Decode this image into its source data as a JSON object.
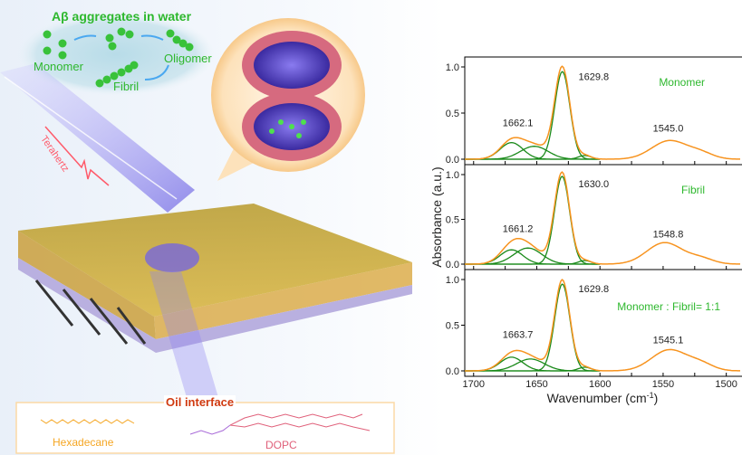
{
  "illustration": {
    "water_title": "Aβ aggregates in water",
    "stages": [
      "Monomer",
      "Oligomer",
      "Fibril"
    ],
    "beam_label": "Terahertz",
    "oil_title": "Oil interface",
    "molecules": [
      "Hexadecane",
      "DOPC"
    ],
    "colors": {
      "green": "#2eb82e",
      "oil_title": "#d03a10",
      "hexadecane": "#f5a623",
      "dopc": "#e0607a",
      "beam": "#7a5cf0"
    }
  },
  "chart_data": {
    "type": "line",
    "xlabel": "Wavenumber (cm-1)",
    "ylabel": "Absorbance (a.u.)",
    "xlim": [
      1707,
      1489
    ],
    "x_reversed": true,
    "ylim": [
      0,
      1.05
    ],
    "xticks": [
      1700,
      1650,
      1600,
      1550,
      1500
    ],
    "yticks": [
      "0.0",
      "0.5",
      "1.0"
    ],
    "colors": {
      "measured": "#f7931e",
      "fit_components": "#1a8a1a",
      "panel_label": "#2eb82e"
    },
    "panels": [
      {
        "label": "Monomer",
        "peaks": [
          "1662.1",
          "1629.8",
          "1545.0"
        ],
        "components": [
          {
            "center": 1670,
            "height": 0.18
          },
          {
            "center": 1652,
            "height": 0.14
          },
          {
            "center": 1629.8,
            "height": 0.95
          },
          {
            "center": 1612,
            "height": 0.04
          }
        ],
        "amide_ii": [
          {
            "center": 1545,
            "height": 0.2
          },
          {
            "center": 1520,
            "height": 0.06
          }
        ]
      },
      {
        "label": "Fibril",
        "peaks": [
          "1661.2",
          "1630.0",
          "1548.8"
        ],
        "components": [
          {
            "center": 1670,
            "height": 0.16
          },
          {
            "center": 1657,
            "height": 0.18
          },
          {
            "center": 1630.0,
            "height": 0.98
          },
          {
            "center": 1612,
            "height": 0.04
          }
        ],
        "amide_ii": [
          {
            "center": 1548.8,
            "height": 0.24
          },
          {
            "center": 1520,
            "height": 0.06
          }
        ]
      },
      {
        "label": "Monomer : Fibril= 1:1",
        "peaks": [
          "1663.7",
          "1629.8",
          "1545.1"
        ],
        "components": [
          {
            "center": 1670,
            "height": 0.15
          },
          {
            "center": 1655,
            "height": 0.13
          },
          {
            "center": 1629.8,
            "height": 0.95
          },
          {
            "center": 1612,
            "height": 0.04
          }
        ],
        "amide_ii": [
          {
            "center": 1545.1,
            "height": 0.23
          },
          {
            "center": 1520,
            "height": 0.07
          }
        ]
      }
    ]
  }
}
